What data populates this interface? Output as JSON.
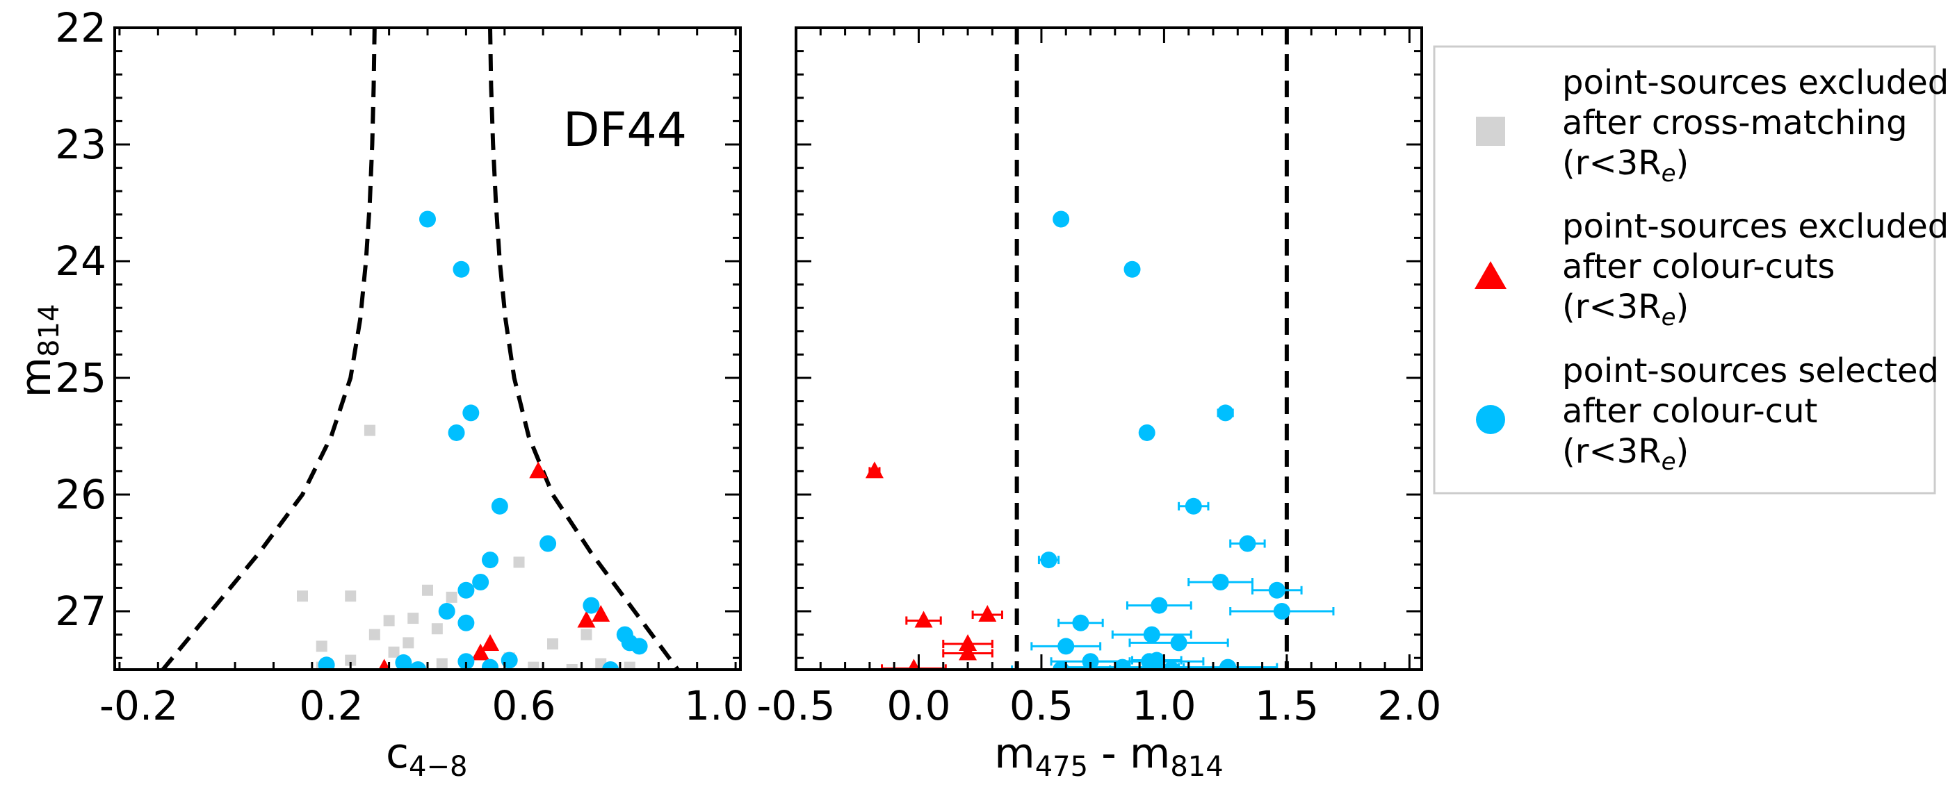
{
  "chart_data": [
    {
      "type": "scatter",
      "panel": "left",
      "title": "",
      "annotation": "DF44",
      "xlabel": "c",
      "xlabel_sub": "4−8",
      "ylabel": "m",
      "ylabel_sub": "814",
      "xlim": [
        -0.25,
        1.05
      ],
      "ylim": [
        27.5,
        22
      ],
      "xticks": [
        -0.2,
        0.2,
        0.6,
        1.0
      ],
      "xtick_labels": [
        "-0.2",
        "0.2",
        "0.6",
        "1.0"
      ],
      "yticks": [
        22,
        23,
        24,
        25,
        26,
        27
      ],
      "ytick_labels": [
        "22",
        "23",
        "24",
        "25",
        "26",
        "27"
      ],
      "grid": false,
      "curves": [
        {
          "name": "left boundary",
          "style": "dashed",
          "points": [
            [
              0.29,
              22.0
            ],
            [
              0.288,
              22.5
            ],
            [
              0.285,
              23.0
            ],
            [
              0.28,
              23.5
            ],
            [
              0.272,
              24.0
            ],
            [
              0.26,
              24.5
            ],
            [
              0.24,
              25.0
            ],
            [
              0.2,
              25.5
            ],
            [
              0.14,
              26.0
            ],
            [
              0.05,
              26.5
            ],
            [
              -0.05,
              27.0
            ],
            [
              -0.15,
              27.5
            ]
          ]
        },
        {
          "name": "right boundary",
          "style": "dashed",
          "points": [
            [
              0.53,
              22.0
            ],
            [
              0.532,
              22.5
            ],
            [
              0.536,
              23.0
            ],
            [
              0.542,
              23.5
            ],
            [
              0.55,
              24.0
            ],
            [
              0.562,
              24.5
            ],
            [
              0.58,
              25.0
            ],
            [
              0.61,
              25.5
            ],
            [
              0.66,
              26.0
            ],
            [
              0.74,
              26.5
            ],
            [
              0.83,
              27.0
            ],
            [
              0.92,
              27.5
            ]
          ]
        }
      ],
      "series": [
        {
          "name": "point-sources excluded after cross-matching (r<3Re)",
          "marker": "square",
          "color": "#d3d3d3",
          "points": [
            [
              0.28,
              25.45
            ],
            [
              0.59,
              26.58
            ],
            [
              0.4,
              26.82
            ],
            [
              0.45,
              26.88
            ],
            [
              0.24,
              26.87
            ],
            [
              0.14,
              26.87
            ],
            [
              0.32,
              27.08
            ],
            [
              0.37,
              27.06
            ],
            [
              0.29,
              27.2
            ],
            [
              0.42,
              27.15
            ],
            [
              0.36,
              27.27
            ],
            [
              0.18,
              27.3
            ],
            [
              0.66,
              27.28
            ],
            [
              0.24,
              27.42
            ],
            [
              0.43,
              27.45
            ],
            [
              0.57,
              27.4
            ],
            [
              0.62,
              27.48
            ],
            [
              0.76,
              27.45
            ],
            [
              0.7,
              27.5
            ],
            [
              0.82,
              27.48
            ],
            [
              0.73,
              27.2
            ],
            [
              0.18,
              27.48
            ],
            [
              0.33,
              27.35
            ]
          ]
        },
        {
          "name": "point-sources excluded after colour-cuts (r<3Re)",
          "marker": "triangle",
          "color": "#ff0000",
          "points": [
            [
              0.63,
              25.8
            ],
            [
              0.73,
              27.08
            ],
            [
              0.76,
              27.03
            ],
            [
              0.53,
              27.28
            ],
            [
              0.51,
              27.36
            ],
            [
              0.31,
              27.49
            ]
          ]
        },
        {
          "name": "point-sources selected after colour-cut (r<3Re)",
          "marker": "circle",
          "color": "#00bfff",
          "points": [
            [
              0.4,
              23.64
            ],
            [
              0.47,
              24.07
            ],
            [
              0.49,
              25.3
            ],
            [
              0.46,
              25.47
            ],
            [
              0.55,
              26.1
            ],
            [
              0.65,
              26.42
            ],
            [
              0.53,
              26.56
            ],
            [
              0.51,
              26.75
            ],
            [
              0.48,
              26.82
            ],
            [
              0.44,
              27.0
            ],
            [
              0.48,
              27.1
            ],
            [
              0.74,
              26.95
            ],
            [
              0.81,
              27.2
            ],
            [
              0.82,
              27.27
            ],
            [
              0.84,
              27.3
            ],
            [
              0.48,
              27.43
            ],
            [
              0.35,
              27.44
            ],
            [
              0.19,
              27.46
            ],
            [
              0.53,
              27.48
            ],
            [
              0.57,
              27.42
            ],
            [
              0.38,
              27.5
            ],
            [
              0.78,
              27.5
            ]
          ]
        }
      ]
    },
    {
      "type": "scatter",
      "panel": "right",
      "title": "",
      "xlabel_parts": [
        "m",
        "475",
        " - m",
        "814"
      ],
      "xlim": [
        -0.5,
        2.05
      ],
      "ylim": [
        27.5,
        22
      ],
      "xticks": [
        -0.5,
        0.0,
        0.5,
        1.0,
        1.5,
        2.0
      ],
      "xtick_labels": [
        "-0.5",
        "0.0",
        "0.5",
        "1.0",
        "1.5",
        "2.0"
      ],
      "yticks": [
        22,
        23,
        24,
        25,
        26,
        27
      ],
      "grid": false,
      "vlines": [
        {
          "x": 0.4,
          "style": "dashed"
        },
        {
          "x": 1.5,
          "style": "dashed"
        }
      ],
      "series": [
        {
          "name": "point-sources excluded after colour-cuts (r<3Re)",
          "marker": "triangle",
          "color": "#ff0000",
          "points": [
            [
              -0.18,
              25.8,
              0.02
            ],
            [
              0.02,
              27.08,
              0.07
            ],
            [
              0.28,
              27.03,
              0.06
            ],
            [
              0.2,
              27.28,
              0.1
            ],
            [
              0.2,
              27.36,
              0.1
            ],
            [
              -0.02,
              27.49,
              0.13
            ]
          ]
        },
        {
          "name": "point-sources selected after colour-cut (r<3Re)",
          "marker": "circle",
          "color": "#00bfff",
          "points": [
            [
              0.58,
              23.64,
              0.01
            ],
            [
              0.87,
              24.07,
              0.02
            ],
            [
              1.25,
              25.3,
              0.03
            ],
            [
              0.93,
              25.47,
              0.02
            ],
            [
              1.12,
              26.1,
              0.06
            ],
            [
              1.34,
              26.42,
              0.07
            ],
            [
              0.53,
              26.56,
              0.04
            ],
            [
              1.23,
              26.75,
              0.13
            ],
            [
              1.46,
              26.82,
              0.1
            ],
            [
              0.98,
              26.95,
              0.13
            ],
            [
              1.48,
              27.0,
              0.21
            ],
            [
              0.66,
              27.1,
              0.09
            ],
            [
              0.95,
              27.2,
              0.16
            ],
            [
              1.06,
              27.27,
              0.2
            ],
            [
              0.6,
              27.3,
              0.14
            ],
            [
              0.7,
              27.43,
              0.16
            ],
            [
              0.94,
              27.43,
              0.22
            ],
            [
              0.97,
              27.42,
              0.1
            ],
            [
              1.26,
              27.48,
              0.2
            ],
            [
              0.83,
              27.48,
              0.25
            ],
            [
              1.03,
              27.5,
              0.2
            ],
            [
              0.58,
              27.5,
              0.2
            ]
          ]
        }
      ]
    }
  ],
  "legend": {
    "placement": "right of plots",
    "entries": [
      {
        "marker": "square",
        "color": "#d3d3d3",
        "lines": [
          "point-sources excluded",
          "after cross-matching"
        ],
        "tail": "(r<3R",
        "tail_sub": "e",
        "tail_end": ")"
      },
      {
        "marker": "triangle",
        "color": "#ff0000",
        "lines": [
          "point-sources excluded",
          "after colour-cuts"
        ],
        "tail": "(r<3R",
        "tail_sub": "e",
        "tail_end": ")"
      },
      {
        "marker": "circle",
        "color": "#00bfff",
        "lines": [
          "point-sources selected",
          "after colour-cut"
        ],
        "tail": "(r<3R",
        "tail_sub": "e",
        "tail_end": ")"
      }
    ]
  }
}
